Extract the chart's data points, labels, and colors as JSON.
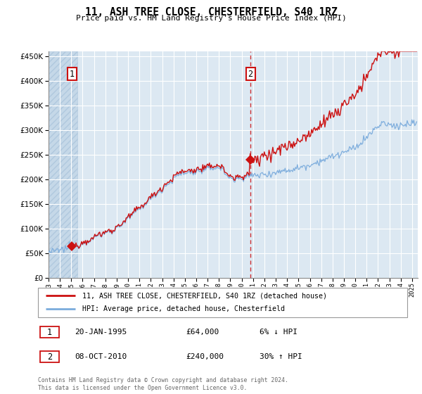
{
  "title": "11, ASH TREE CLOSE, CHESTERFIELD, S40 1RZ",
  "subtitle": "Price paid vs. HM Land Registry's House Price Index (HPI)",
  "legend_line1": "11, ASH TREE CLOSE, CHESTERFIELD, S40 1RZ (detached house)",
  "legend_line2": "HPI: Average price, detached house, Chesterfield",
  "annotation1_label": "1",
  "annotation1_date": "20-JAN-1995",
  "annotation1_price": "£64,000",
  "annotation1_hpi": "6% ↓ HPI",
  "annotation2_label": "2",
  "annotation2_date": "08-OCT-2010",
  "annotation2_price": "£240,000",
  "annotation2_hpi": "30% ↑ HPI",
  "footer": "Contains HM Land Registry data © Crown copyright and database right 2024.\nThis data is licensed under the Open Government Licence v3.0.",
  "sale1_year": 1995.055,
  "sale1_price": 64000,
  "sale2_year": 2010.77,
  "sale2_price": 240000,
  "hpi_color": "#7aabdc",
  "property_color": "#cc1111",
  "dashed_line_color": "#cc1111",
  "plot_bg_color": "#dce8f2",
  "hatch_bg_color": "#c5d8e8",
  "ylim_min": 0,
  "ylim_max": 460000,
  "xlim_min": 1993.0,
  "xlim_max": 2025.5,
  "n_points": 390
}
